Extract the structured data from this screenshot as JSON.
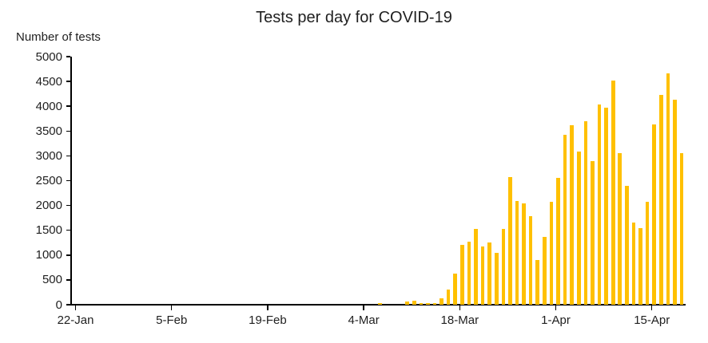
{
  "chart_data": {
    "type": "bar",
    "title": "Tests per day for COVID-19",
    "ylabel": "Number of tests",
    "xlabel": "",
    "ylim": [
      0,
      5000
    ],
    "ytick_step": 500,
    "grid": "off",
    "legend": "none",
    "bar_color": "#FFC000",
    "axis_color": "#000000",
    "x_tick_labels": [
      "22-Jan",
      "5-Feb",
      "19-Feb",
      "4-Mar",
      "18-Mar",
      "1-Apr",
      "15-Apr"
    ],
    "categories": [
      "6-Mar",
      "10-Mar",
      "11-Mar",
      "12-Mar",
      "13-Mar",
      "14-Mar",
      "15-Mar",
      "16-Mar",
      "17-Mar",
      "18-Mar",
      "19-Mar",
      "20-Mar",
      "21-Mar",
      "22-Mar",
      "23-Mar",
      "24-Mar",
      "25-Mar",
      "26-Mar",
      "27-Mar",
      "28-Mar",
      "29-Mar",
      "30-Mar",
      "31-Mar",
      "1-Apr",
      "2-Apr",
      "3-Apr",
      "4-Apr",
      "5-Apr",
      "6-Apr",
      "7-Apr",
      "8-Apr",
      "9-Apr",
      "10-Apr",
      "11-Apr",
      "12-Apr",
      "13-Apr",
      "14-Apr",
      "15-Apr",
      "16-Apr",
      "17-Apr",
      "18-Apr",
      "19-Apr"
    ],
    "values": [
      30,
      70,
      80,
      40,
      30,
      40,
      130,
      310,
      620,
      1200,
      1270,
      1530,
      1170,
      1250,
      1040,
      1530,
      2570,
      2090,
      2040,
      1790,
      900,
      1360,
      2080,
      2550,
      3420,
      3620,
      3080,
      3690,
      2890,
      4030,
      3970,
      4510,
      3050,
      2400,
      1650,
      1540,
      2080,
      3640,
      4230,
      4670,
      4130,
      3060
    ]
  }
}
